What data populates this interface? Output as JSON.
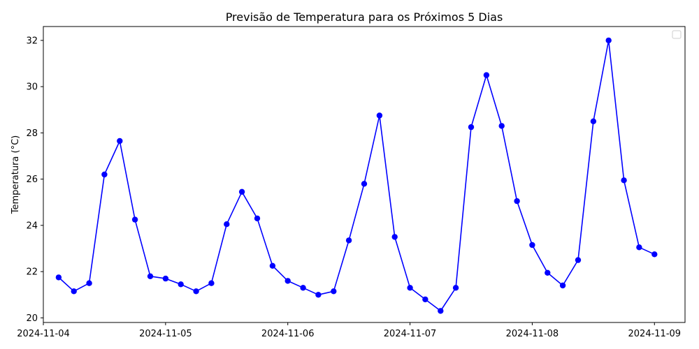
{
  "chart_data": {
    "type": "line",
    "title": "Previsão de Temperatura para os Próximos 5 Dias",
    "xlabel": "",
    "ylabel": "Temperatura (°C)",
    "xlim": [
      "2024-11-04 00:00",
      "2024-11-09 06:00"
    ],
    "ylim": [
      19.8,
      32.6
    ],
    "x_ticks": [
      "2024-11-04",
      "2024-11-05",
      "2024-11-06",
      "2024-11-07",
      "2024-11-08",
      "2024-11-09"
    ],
    "y_ticks": [
      20,
      22,
      24,
      26,
      28,
      30,
      32
    ],
    "grid": false,
    "legend": "top-right",
    "series": [
      {
        "color": "#0000ff",
        "marker": "circle",
        "x": [
          "2024-11-04 03:00",
          "2024-11-04 06:00",
          "2024-11-04 09:00",
          "2024-11-04 12:00",
          "2024-11-04 15:00",
          "2024-11-04 18:00",
          "2024-11-04 21:00",
          "2024-11-05 00:00",
          "2024-11-05 03:00",
          "2024-11-05 06:00",
          "2024-11-05 09:00",
          "2024-11-05 12:00",
          "2024-11-05 15:00",
          "2024-11-05 18:00",
          "2024-11-05 21:00",
          "2024-11-06 00:00",
          "2024-11-06 03:00",
          "2024-11-06 06:00",
          "2024-11-06 09:00",
          "2024-11-06 12:00",
          "2024-11-06 15:00",
          "2024-11-06 18:00",
          "2024-11-06 21:00",
          "2024-11-07 00:00",
          "2024-11-07 03:00",
          "2024-11-07 06:00",
          "2024-11-07 09:00",
          "2024-11-07 12:00",
          "2024-11-07 15:00",
          "2024-11-07 18:00",
          "2024-11-07 21:00",
          "2024-11-08 00:00",
          "2024-11-08 03:00",
          "2024-11-08 06:00",
          "2024-11-08 09:00",
          "2024-11-08 12:00",
          "2024-11-08 15:00",
          "2024-11-08 18:00",
          "2024-11-08 21:00",
          "2024-11-09 00:00"
        ],
        "y": [
          21.75,
          21.15,
          21.5,
          26.2,
          27.65,
          24.25,
          21.8,
          21.7,
          21.45,
          21.15,
          21.5,
          24.05,
          25.45,
          24.3,
          22.25,
          21.6,
          21.3,
          21.0,
          21.15,
          23.35,
          25.8,
          28.75,
          23.5,
          21.3,
          20.8,
          20.3,
          21.3,
          28.25,
          30.5,
          28.3,
          25.05,
          23.15,
          21.95,
          21.4,
          22.5,
          28.5,
          32.0,
          25.95,
          23.05,
          22.75
        ]
      }
    ]
  }
}
